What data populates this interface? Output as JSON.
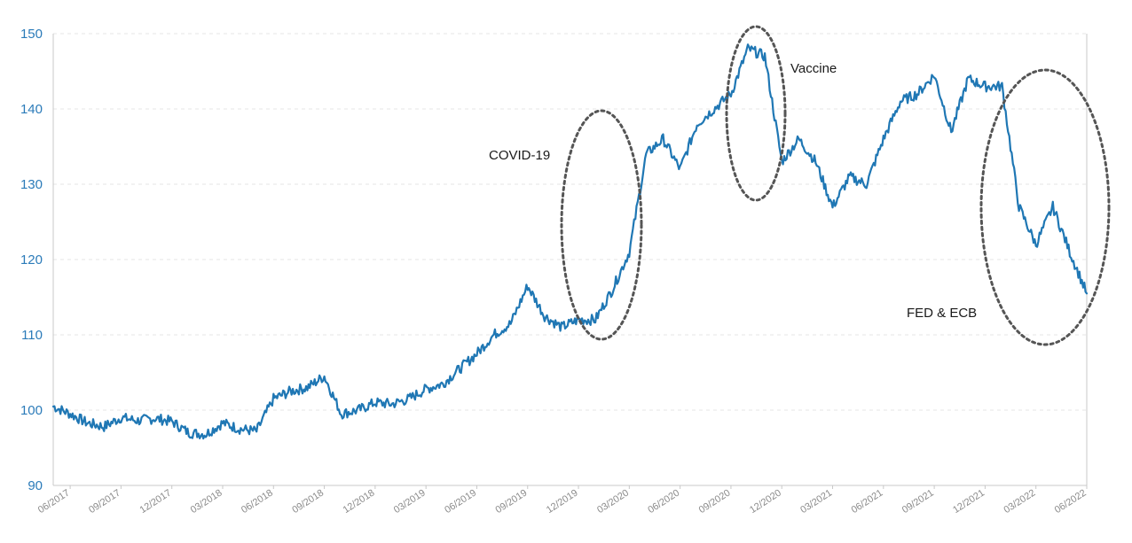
{
  "chart_data": {
    "type": "line",
    "title": "",
    "xlabel": "",
    "ylabel": "",
    "ylim": [
      90,
      150
    ],
    "xlim": [
      "2017-05",
      "2022-06"
    ],
    "y_ticks": [
      90,
      100,
      110,
      120,
      130,
      140,
      150
    ],
    "x_ticks": [
      "06/2017",
      "09/2017",
      "12/2017",
      "03/2018",
      "06/2018",
      "09/2018",
      "12/2018",
      "03/2019",
      "06/2019",
      "09/2019",
      "12/2019",
      "03/2020",
      "06/2020",
      "09/2020",
      "12/2020",
      "03/2021",
      "06/2021",
      "09/2021",
      "12/2021",
      "03/2022",
      "06/2022"
    ],
    "grid": true,
    "colors": {
      "series": "#1f77b4",
      "y_tick_text": "#2b7bb9",
      "x_tick_text": "#8a8a8a",
      "annotation_outline": "#555555"
    },
    "series": [
      {
        "points": [
          [
            "2017-05",
            100.5
          ],
          [
            "2017-06",
            99.5
          ],
          [
            "2017-07",
            98.3
          ],
          [
            "2017-08",
            97.8
          ],
          [
            "2017-09",
            99.0
          ],
          [
            "2017-10",
            98.6
          ],
          [
            "2017-11",
            98.9
          ],
          [
            "2017-12",
            98.5
          ],
          [
            "2018-01",
            97.0
          ],
          [
            "2018-02",
            96.8
          ],
          [
            "2018-03",
            98.3
          ],
          [
            "2018-04",
            97.5
          ],
          [
            "2018-05",
            97.2
          ],
          [
            "2018-06",
            101.5
          ],
          [
            "2018-07",
            102.5
          ],
          [
            "2018-08",
            103.0
          ],
          [
            "2018-09",
            104.5
          ],
          [
            "2018-10",
            99.5
          ],
          [
            "2018-11",
            100.0
          ],
          [
            "2018-12",
            101.0
          ],
          [
            "2019-01",
            100.8
          ],
          [
            "2019-02",
            101.5
          ],
          [
            "2019-03",
            102.8
          ],
          [
            "2019-04",
            103.5
          ],
          [
            "2019-05",
            105.5
          ],
          [
            "2019-06",
            107.5
          ],
          [
            "2019-07",
            110.0
          ],
          [
            "2019-08",
            111.5
          ],
          [
            "2019-09",
            116.5
          ],
          [
            "2019-10",
            112.5
          ],
          [
            "2019-11",
            111.0
          ],
          [
            "2019-12",
            112.0
          ],
          [
            "2020-01",
            112.0
          ],
          [
            "2020-02",
            116.0
          ],
          [
            "2020-03",
            121.0
          ],
          [
            "2020-04",
            134.0
          ],
          [
            "2020-05",
            136.0
          ],
          [
            "2020-06",
            132.0
          ],
          [
            "2020-07",
            138.0
          ],
          [
            "2020-08",
            140.0
          ],
          [
            "2020-09",
            142.0
          ],
          [
            "2020-10",
            148.0
          ],
          [
            "2020-11",
            147.0
          ],
          [
            "2020-12",
            133.0
          ],
          [
            "2021-01",
            136.0
          ],
          [
            "2021-02",
            133.0
          ],
          [
            "2021-03",
            127.0
          ],
          [
            "2021-04",
            131.0
          ],
          [
            "2021-05",
            130.0
          ],
          [
            "2021-06",
            136.0
          ],
          [
            "2021-07",
            141.0
          ],
          [
            "2021-08",
            142.0
          ],
          [
            "2021-09",
            144.5
          ],
          [
            "2021-10",
            137.0
          ],
          [
            "2021-11",
            144.0
          ],
          [
            "2021-12",
            143.0
          ],
          [
            "2022-01",
            143.0
          ],
          [
            "2022-02",
            127.0
          ],
          [
            "2022-03",
            122.0
          ],
          [
            "2022-04",
            127.0
          ],
          [
            "2022-05",
            121.0
          ],
          [
            "2022-06",
            115.5
          ]
        ]
      }
    ],
    "annotations": [
      {
        "label": "COVID-19",
        "at": [
          "2020-03",
          125
        ]
      },
      {
        "label": "Vaccine",
        "at": [
          "2020-11",
          140
        ]
      },
      {
        "label": "FED & ECB",
        "at": [
          "2022-03",
          127
        ]
      }
    ]
  }
}
